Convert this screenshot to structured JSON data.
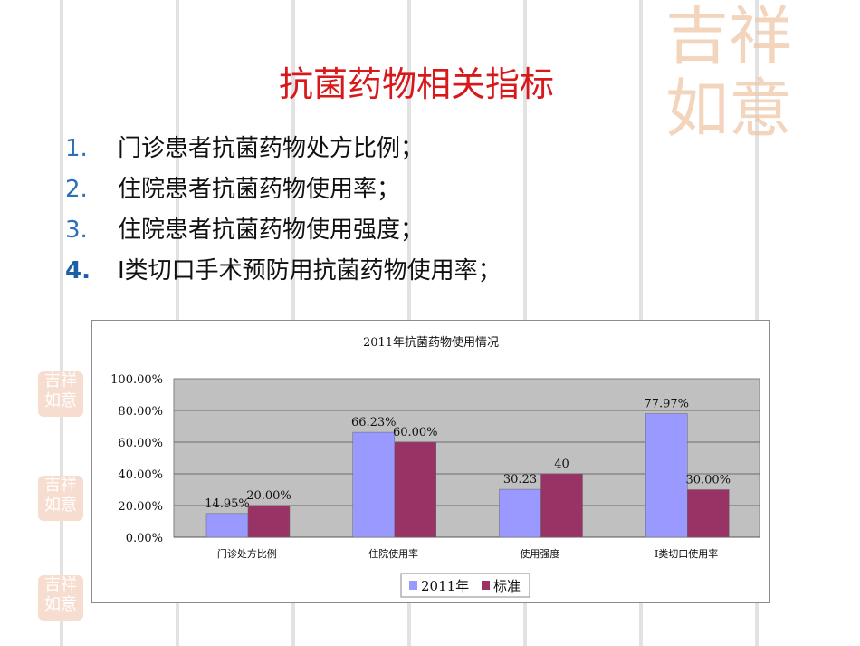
{
  "slide": {
    "title": "抗菌药物相关指标",
    "items": [
      {
        "num": "1.",
        "text": "门诊患者抗菌药物处方比例；"
      },
      {
        "num": "2.",
        "text": "住院患者抗菌药物使用率；"
      },
      {
        "num": "3.",
        "text": "住院患者抗菌药物使用强度；"
      },
      {
        "num": "4.",
        "text": "I类切口手术预防用抗菌药物使用率；"
      }
    ],
    "decoration": {
      "seal_text": "吉祥如意"
    }
  },
  "chart_data": {
    "type": "bar",
    "title": "2011年抗菌药物使用情况",
    "categories": [
      "门诊处方比例",
      "住院使用率",
      "使用强度",
      "I类切口使用率"
    ],
    "yticks": [
      "0.00%",
      "20.00%",
      "40.00%",
      "60.00%",
      "80.00%",
      "100.00%"
    ],
    "ylim": [
      0,
      100
    ],
    "grid": true,
    "legend_position": "bottom",
    "plot_background": "#c0c0c0",
    "series": [
      {
        "name": "2011年",
        "color": "#9999ff",
        "values": [
          14.95,
          66.23,
          30.23,
          77.97
        ],
        "labels": [
          "14.95%",
          "66.23%",
          "30.23",
          "77.97%"
        ]
      },
      {
        "name": "标准",
        "color": "#993366",
        "values": [
          20,
          60,
          40,
          30
        ],
        "labels": [
          "20.00%",
          "60.00%",
          "40",
          "30.00%"
        ]
      }
    ]
  }
}
